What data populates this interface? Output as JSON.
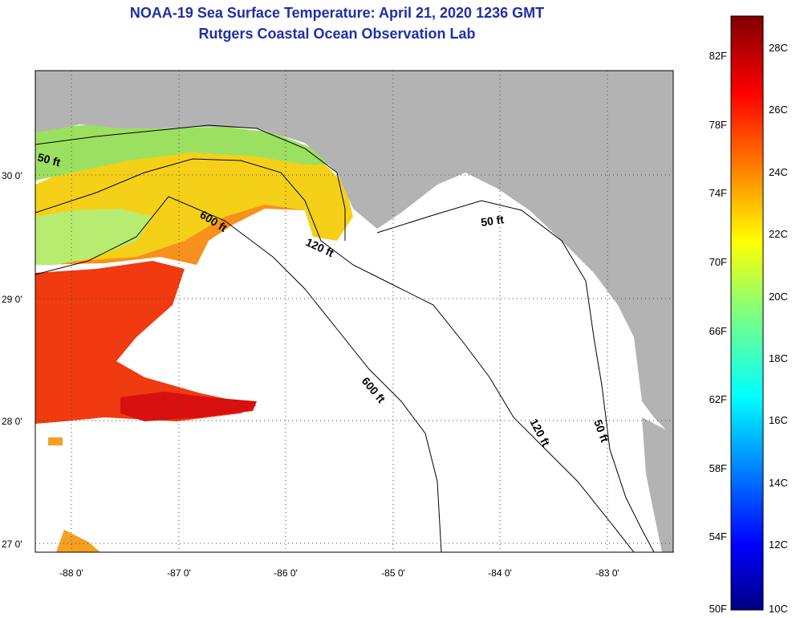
{
  "title": {
    "line1": "NOAA-19 Sea Surface Temperature:  April 21, 2020 1236 GMT",
    "line2": "Rutgers Coastal Ocean Observation Lab"
  },
  "map": {
    "lat_ticks": [
      "30 0'",
      "29 0'",
      "28 0'",
      "27 0'"
    ],
    "lon_ticks": [
      "-88 0'",
      "-87 0'",
      "-86 0'",
      "-85 0'",
      "-84 0'",
      "-83 0'"
    ],
    "contours": {
      "c50_west": "50 ft",
      "c600_north": "600 ft",
      "c120_north": "120 ft",
      "c50_east": "50 ft",
      "c600_south": "600 ft",
      "c120_south": "120 ft",
      "c50_south": "50 ft"
    }
  },
  "colorbar": {
    "fahrenheit": [
      "82F",
      "78F",
      "74F",
      "70F",
      "66F",
      "62F",
      "58F",
      "54F",
      "50F"
    ],
    "celsius": [
      "28C",
      "26C",
      "24C",
      "22C",
      "20C",
      "18C",
      "16C",
      "14C",
      "12C",
      "10C"
    ]
  },
  "colors": {
    "title": "#1f2fa8",
    "land": "#b3b3b3",
    "ocean_no_data": "#ffffff",
    "warm_sst": "#f03a10",
    "mid_sst": "#f5c010",
    "cool_sst": "#9be060"
  }
}
